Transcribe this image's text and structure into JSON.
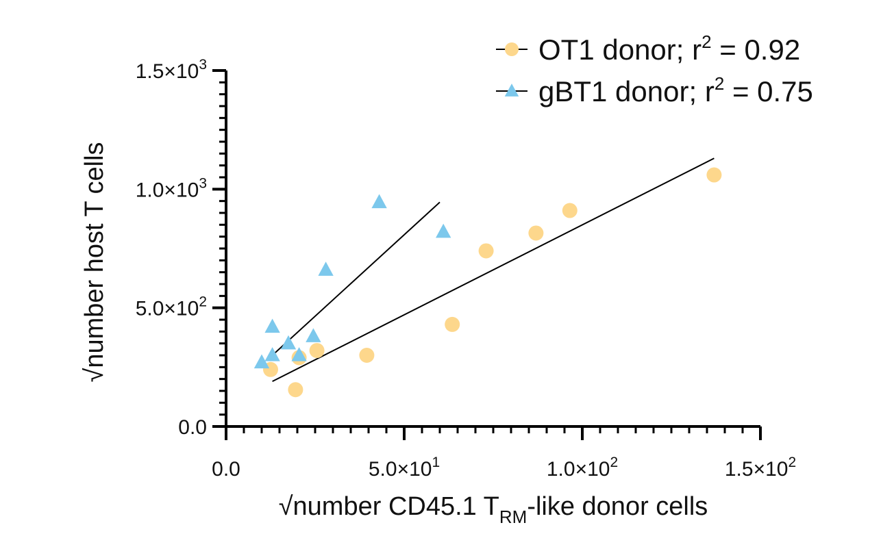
{
  "chart_data": {
    "type": "scatter",
    "title": "",
    "xlabel": {
      "prefix": "√number CD45.1 T",
      "subscript": "RM",
      "suffix": "-like donor cells"
    },
    "ylabel": "√number host T cells",
    "xlim": [
      0,
      150
    ],
    "ylim": [
      0,
      1500
    ],
    "x_ticks": [
      {
        "value": 0,
        "base": "0.0",
        "exp": ""
      },
      {
        "value": 50,
        "base": "5.0×10",
        "exp": "1"
      },
      {
        "value": 100,
        "base": "1.0×10",
        "exp": "2"
      },
      {
        "value": 150,
        "base": "1.5×10",
        "exp": "2"
      }
    ],
    "y_ticks": [
      {
        "value": 0,
        "base": "0.0",
        "exp": ""
      },
      {
        "value": 500,
        "base": "5.0×10",
        "exp": "2"
      },
      {
        "value": 1000,
        "base": "1.0×10",
        "exp": "3"
      },
      {
        "value": 1500,
        "base": "1.5×10",
        "exp": "3"
      }
    ],
    "x_minor_step": 5,
    "y_minor_step": 50,
    "legend_position": "top-right",
    "series": [
      {
        "name": "OT1 donor; r² = 0.92",
        "legend_main": "OT1 donor; r",
        "legend_exp": "2",
        "legend_tail": " = 0.92",
        "marker": "circle",
        "color": "#FDD78C",
        "x": [
          12.5,
          19.5,
          20.5,
          25.5,
          39.5,
          63.5,
          73,
          87,
          96.5,
          137
        ],
        "y": [
          240,
          155,
          290,
          320,
          300,
          430,
          740,
          815,
          910,
          1060
        ],
        "fit": {
          "x": [
            13,
            137
          ],
          "y": [
            190,
            1130
          ]
        }
      },
      {
        "name": "gBT1 donor; r² = 0.75",
        "legend_main": "gBT1 donor; r",
        "legend_exp": "2",
        "legend_tail": " = 0.75",
        "marker": "triangle",
        "color": "#7CC8EC",
        "x": [
          10,
          13,
          13,
          17.5,
          20.5,
          24.5,
          28,
          43,
          61
        ],
        "y": [
          270,
          300,
          420,
          350,
          300,
          380,
          660,
          945,
          820
        ],
        "fit": {
          "x": [
            13,
            60
          ],
          "y": [
            300,
            945
          ]
        }
      }
    ]
  }
}
